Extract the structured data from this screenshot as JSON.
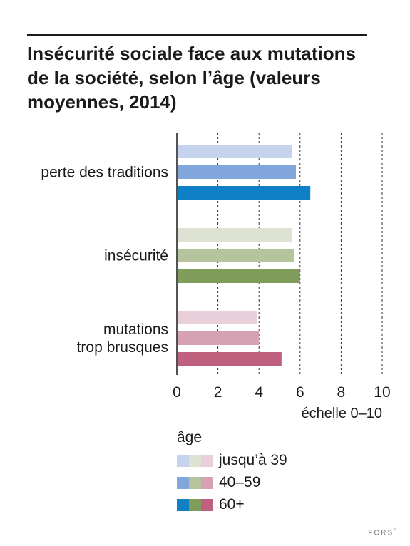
{
  "title": "Insécurité sociale face aux mutations de la société, selon l’âge (valeurs moyennes, 2014)",
  "chart_data": {
    "type": "bar",
    "orientation": "horizontal",
    "categories": [
      "perte des traditions",
      "insécurité",
      "mutations trop brusques"
    ],
    "category_lines": [
      [
        "perte des traditions"
      ],
      [
        "insécurité"
      ],
      [
        "mutations",
        "trop brusques"
      ]
    ],
    "series": [
      {
        "name": "jusqu’à 39",
        "values": [
          5.6,
          5.6,
          3.9
        ],
        "colors": [
          "#c5d3ef",
          "#dde2d2",
          "#e8cfd9"
        ]
      },
      {
        "name": "40–59",
        "values": [
          5.8,
          5.7,
          4.0
        ],
        "colors": [
          "#80a6dc",
          "#b5c49d",
          "#d6a1b3"
        ]
      },
      {
        "name": "60+",
        "values": [
          6.5,
          6.0,
          5.1
        ],
        "colors": [
          "#0f7fc6",
          "#7f9c5b",
          "#c0607f"
        ]
      }
    ],
    "xlim": [
      0,
      10
    ],
    "xticks": [
      0,
      2,
      4,
      6,
      8,
      10
    ],
    "xlabel": "échelle 0–10",
    "grid": "vertical dashed",
    "legend_title": "âge",
    "legend_placement": "bottom"
  },
  "footer": {
    "brand": "FORS",
    "mark": "°"
  }
}
